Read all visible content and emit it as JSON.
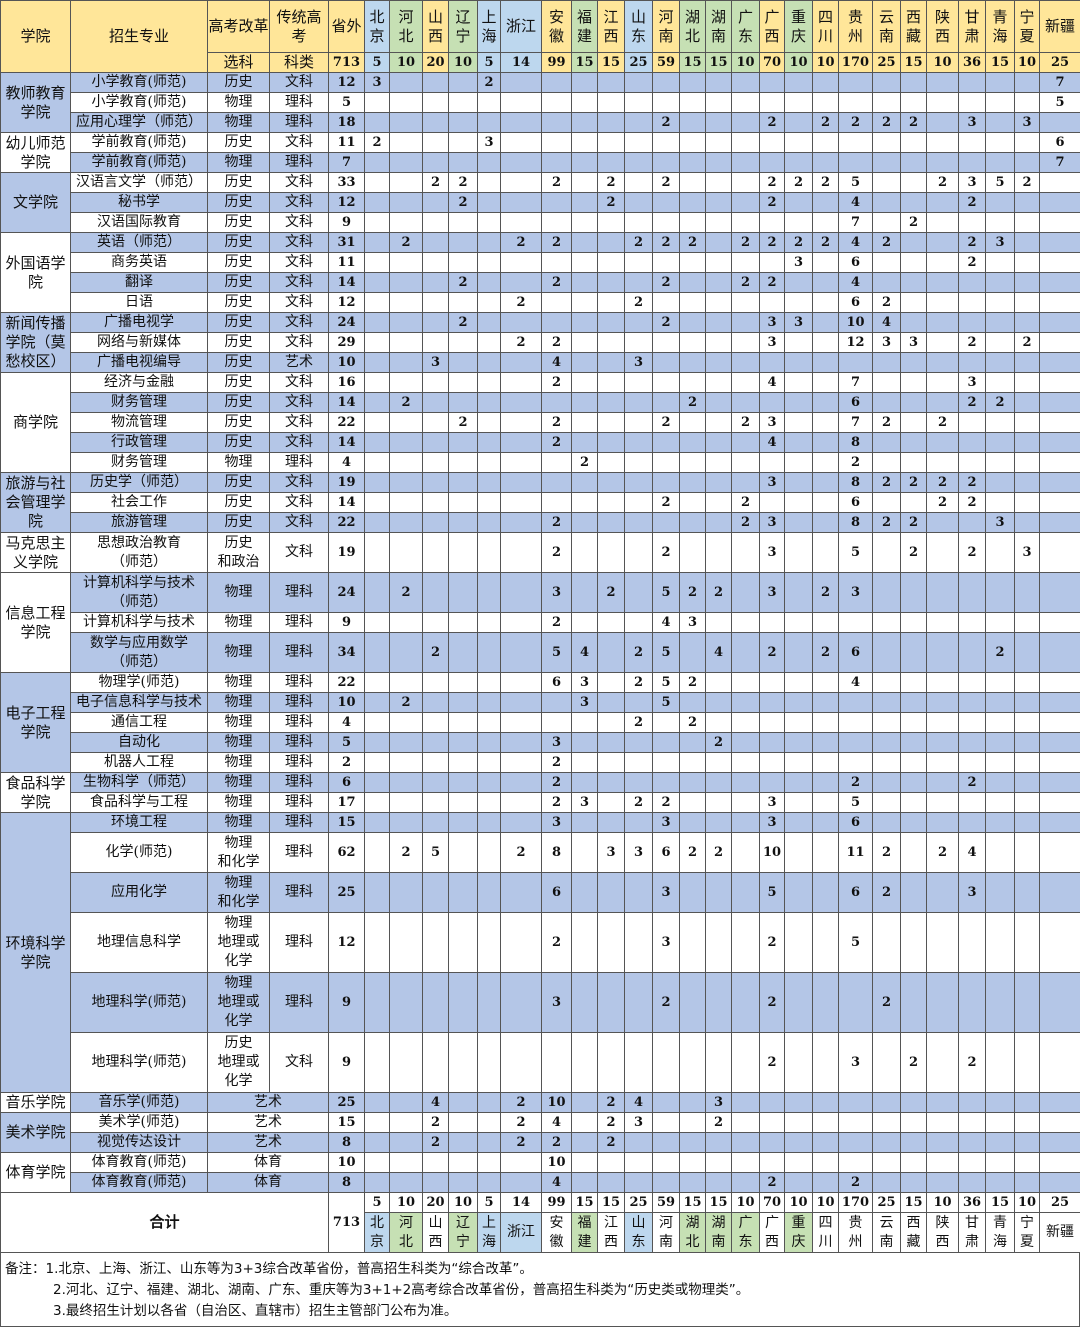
{
  "header": {
    "college": "学院",
    "major": "招生专业",
    "reform": "高考改革",
    "traditional": "传统高考",
    "out_of_province": "省外",
    "subject": "选科",
    "category": "科类",
    "total": 713
  },
  "colors": {
    "traditional": "#ffe699",
    "reform_3_3": "#bdd7ee",
    "reform_3_1_2": "#c6e0b4",
    "stripe": "#b4c6e7"
  },
  "provinces": [
    {
      "name": "北京",
      "quota": 5,
      "color": "#bdd7ee"
    },
    {
      "name": "河北",
      "quota": 10,
      "color": "#c6e0b4"
    },
    {
      "name": "山西",
      "quota": 20,
      "color": "#ffe699"
    },
    {
      "name": "辽宁",
      "quota": 10,
      "color": "#c6e0b4"
    },
    {
      "name": "上海",
      "quota": 5,
      "color": "#bdd7ee"
    },
    {
      "name": "浙江",
      "quota": 14,
      "color": "#bdd7ee"
    },
    {
      "name": "安徽",
      "quota": 99,
      "color": "#ffe699"
    },
    {
      "name": "福建",
      "quota": 15,
      "color": "#c6e0b4"
    },
    {
      "name": "江西",
      "quota": 15,
      "color": "#ffe699"
    },
    {
      "name": "山东",
      "quota": 25,
      "color": "#bdd7ee"
    },
    {
      "name": "河南",
      "quota": 59,
      "color": "#ffe699"
    },
    {
      "name": "湖北",
      "quota": 15,
      "color": "#c6e0b4"
    },
    {
      "name": "湖南",
      "quota": 15,
      "color": "#c6e0b4"
    },
    {
      "name": "广东",
      "quota": 10,
      "color": "#c6e0b4"
    },
    {
      "name": "广西",
      "quota": 70,
      "color": "#ffe699"
    },
    {
      "name": "重庆",
      "quota": 10,
      "color": "#c6e0b4"
    },
    {
      "name": "四川",
      "quota": 10,
      "color": "#ffe699"
    },
    {
      "name": "贵州",
      "quota": 170,
      "color": "#ffe699"
    },
    {
      "name": "云南",
      "quota": 25,
      "color": "#ffe699"
    },
    {
      "name": "西藏",
      "quota": 15,
      "color": "#ffe699"
    },
    {
      "name": "陕西",
      "quota": 10,
      "color": "#ffe699"
    },
    {
      "name": "甘肃",
      "quota": 36,
      "color": "#ffe699"
    },
    {
      "name": "青海",
      "quota": 15,
      "color": "#ffe699"
    },
    {
      "name": "宁夏",
      "quota": 10,
      "color": "#ffe699"
    },
    {
      "name": "新疆",
      "quota": 25,
      "color": "#ffe699"
    }
  ],
  "colleges": [
    {
      "name": "教师教育\n学院",
      "majors": [
        {
          "name": "小学教育(师范)",
          "subject": "历史",
          "category": "文科",
          "total": 12,
          "counts": {
            "北京": 3,
            "上海": 2,
            "新疆": 7
          }
        },
        {
          "name": "小学教育(师范)",
          "subject": "物理",
          "category": "理科",
          "total": 5,
          "counts": {
            "新疆": 5
          }
        },
        {
          "name": "应用心理学（师范）",
          "subject": "物理",
          "category": "理科",
          "total": 18,
          "counts": {
            "河南": 2,
            "广西": 2,
            "四川": 2,
            "贵州": 2,
            "云南": 2,
            "西藏": 2,
            "甘肃": 3,
            "宁夏": 3
          }
        }
      ]
    },
    {
      "name": "幼儿师范\n学院",
      "majors": [
        {
          "name": "学前教育(师范)",
          "subject": "历史",
          "category": "文科",
          "total": 11,
          "counts": {
            "北京": 2,
            "上海": 3,
            "新疆": 6
          }
        },
        {
          "name": "学前教育(师范)",
          "subject": "物理",
          "category": "理科",
          "total": 7,
          "counts": {
            "新疆": 7
          }
        }
      ]
    },
    {
      "name": "文学院",
      "majors": [
        {
          "name": "汉语言文学（师范）",
          "subject": "历史",
          "category": "文科",
          "total": 33,
          "counts": {
            "山西": 2,
            "辽宁": 2,
            "安徽": 2,
            "江西": 2,
            "河南": 2,
            "广西": 2,
            "重庆": 2,
            "四川": 2,
            "贵州": 5,
            "陕西": 2,
            "甘肃": 3,
            "青海": 5,
            "宁夏": 2
          }
        },
        {
          "name": "秘书学",
          "subject": "历史",
          "category": "文科",
          "total": 12,
          "counts": {
            "辽宁": 2,
            "江西": 2,
            "广西": 2,
            "贵州": 4,
            "甘肃": 2
          }
        },
        {
          "name": "汉语国际教育",
          "subject": "历史",
          "category": "文科",
          "total": 9,
          "counts": {
            "贵州": 7,
            "西藏": 2
          }
        }
      ]
    },
    {
      "name": "外国语学\n院",
      "majors": [
        {
          "name": "英语（师范）",
          "subject": "历史",
          "category": "文科",
          "total": 31,
          "counts": {
            "河北": 2,
            "浙江": 2,
            "安徽": 2,
            "山东": 2,
            "河南": 2,
            "湖北": 2,
            "广东": 2,
            "广西": 2,
            "重庆": 2,
            "四川": 2,
            "贵州": 4,
            "云南": 2,
            "甘肃": 2,
            "青海": 3
          }
        },
        {
          "name": "商务英语",
          "subject": "历史",
          "category": "文科",
          "total": 11,
          "counts": {
            "重庆": 3,
            "贵州": 6,
            "甘肃": 2
          }
        },
        {
          "name": "翻译",
          "subject": "历史",
          "category": "文科",
          "total": 14,
          "counts": {
            "辽宁": 2,
            "安徽": 2,
            "河南": 2,
            "广东": 2,
            "广西": 2,
            "贵州": 4
          }
        },
        {
          "name": "日语",
          "subject": "历史",
          "category": "文科",
          "total": 12,
          "counts": {
            "浙江": 2,
            "山东": 2,
            "贵州": 6,
            "云南": 2
          }
        }
      ]
    },
    {
      "name": "新闻传播\n学院（莫\n愁校区）",
      "majors": [
        {
          "name": "广播电视学",
          "subject": "历史",
          "category": "文科",
          "total": 24,
          "counts": {
            "辽宁": 2,
            "河南": 2,
            "广西": 3,
            "重庆": 3,
            "贵州": 10,
            "云南": 4
          }
        },
        {
          "name": "网络与新媒体",
          "subject": "历史",
          "category": "文科",
          "total": 29,
          "counts": {
            "浙江": 2,
            "安徽": 2,
            "广西": 3,
            "贵州": 12,
            "云南": 3,
            "西藏": 3,
            "甘肃": 2,
            "宁夏": 2
          }
        },
        {
          "name": "广播电视编导",
          "subject": "历史",
          "category": "艺术",
          "total": 10,
          "counts": {
            "山西": 3,
            "安徽": 4,
            "山东": 3
          }
        }
      ]
    },
    {
      "name": "商学院",
      "majors": [
        {
          "name": "经济与金融",
          "subject": "历史",
          "category": "文科",
          "total": 16,
          "counts": {
            "安徽": 2,
            "广西": 4,
            "贵州": 7,
            "甘肃": 3
          }
        },
        {
          "name": "财务管理",
          "subject": "历史",
          "category": "文科",
          "total": 14,
          "counts": {
            "河北": 2,
            "湖北": 2,
            "贵州": 6,
            "甘肃": 2,
            "青海": 2
          }
        },
        {
          "name": "物流管理",
          "subject": "历史",
          "category": "文科",
          "total": 22,
          "counts": {
            "辽宁": 2,
            "安徽": 2,
            "河南": 2,
            "广东": 2,
            "广西": 3,
            "贵州": 7,
            "云南": 2,
            "陕西": 2
          }
        },
        {
          "name": "行政管理",
          "subject": "历史",
          "category": "文科",
          "total": 14,
          "counts": {
            "安徽": 2,
            "广西": 4,
            "贵州": 8
          }
        },
        {
          "name": "财务管理",
          "subject": "物理",
          "category": "理科",
          "total": 4,
          "counts": {
            "福建": 2,
            "贵州": 2
          }
        }
      ]
    },
    {
      "name": "旅游与社\n会管理学\n院",
      "majors": [
        {
          "name": "历史学（师范）",
          "subject": "历史",
          "category": "文科",
          "total": 19,
          "counts": {
            "广西": 3,
            "贵州": 8,
            "云南": 2,
            "西藏": 2,
            "陕西": 2,
            "甘肃": 2
          }
        },
        {
          "name": "社会工作",
          "subject": "历史",
          "category": "文科",
          "total": 14,
          "counts": {
            "河南": 2,
            "广东": 2,
            "贵州": 6,
            "陕西": 2,
            "甘肃": 2
          }
        },
        {
          "name": "旅游管理",
          "subject": "历史",
          "category": "文科",
          "total": 22,
          "counts": {
            "安徽": 2,
            "广东": 2,
            "广西": 3,
            "贵州": 8,
            "云南": 2,
            "西藏": 2,
            "青海": 3
          }
        }
      ]
    },
    {
      "name": "马克思主\n义学院",
      "majors": [
        {
          "name": "思想政治教育\n（师范）",
          "subject": "历史\n和政治",
          "category": "文科",
          "total": 19,
          "counts": {
            "安徽": 2,
            "河南": 2,
            "广西": 3,
            "贵州": 5,
            "西藏": 2,
            "甘肃": 2,
            "宁夏": 3
          }
        }
      ]
    },
    {
      "name": "信息工程\n学院",
      "majors": [
        {
          "name": "计算机科学与技术\n（师范）",
          "subject": "物理",
          "category": "理科",
          "total": 24,
          "counts": {
            "河北": 2,
            "安徽": 3,
            "江西": 2,
            "河南": 5,
            "湖北": 2,
            "湖南": 2,
            "广西": 3,
            "四川": 2,
            "贵州": 3
          }
        },
        {
          "name": "计算机科学与技术",
          "subject": "物理",
          "category": "理科",
          "total": 9,
          "counts": {
            "安徽": 2,
            "河南": 4,
            "湖北": 3
          }
        },
        {
          "name": "数学与应用数学\n（师范）",
          "subject": "物理",
          "category": "理科",
          "total": 34,
          "counts": {
            "山西": 2,
            "安徽": 5,
            "福建": 4,
            "山东": 2,
            "河南": 5,
            "湖南": 4,
            "广西": 2,
            "四川": 2,
            "贵州": 6,
            "青海": 2
          }
        }
      ]
    },
    {
      "name": "电子工程\n学院",
      "majors": [
        {
          "name": "物理学(师范)",
          "subject": "物理",
          "category": "理科",
          "total": 22,
          "counts": {
            "安徽": 6,
            "福建": 3,
            "山东": 2,
            "河南": 5,
            "湖北": 2,
            "贵州": 4
          }
        },
        {
          "name": "电子信息科学与技术",
          "subject": "物理",
          "category": "理科",
          "total": 10,
          "counts": {
            "河北": 2,
            "福建": 3,
            "河南": 5
          }
        },
        {
          "name": "通信工程",
          "subject": "物理",
          "category": "理科",
          "total": 4,
          "counts": {
            "山东": 2,
            "湖北": 2
          }
        },
        {
          "name": "自动化",
          "subject": "物理",
          "category": "理科",
          "total": 5,
          "counts": {
            "安徽": 3,
            "湖南": 2
          }
        },
        {
          "name": "机器人工程",
          "subject": "物理",
          "category": "理科",
          "total": 2,
          "counts": {
            "安徽": 2
          }
        }
      ]
    },
    {
      "name": "食品科学\n学院",
      "majors": [
        {
          "name": "生物科学（师范）",
          "subject": "物理",
          "category": "理科",
          "total": 6,
          "counts": {
            "安徽": 2,
            "贵州": 2,
            "甘肃": 2
          }
        },
        {
          "name": "食品科学与工程",
          "subject": "物理",
          "category": "理科",
          "total": 17,
          "counts": {
            "安徽": 2,
            "福建": 3,
            "山东": 2,
            "河南": 2,
            "广西": 3,
            "贵州": 5
          }
        }
      ]
    },
    {
      "name": "环境科学\n学院",
      "majors": [
        {
          "name": "环境工程",
          "subject": "物理",
          "category": "理科",
          "total": 15,
          "counts": {
            "安徽": 3,
            "河南": 3,
            "广西": 3,
            "贵州": 6
          }
        },
        {
          "name": "化学(师范)",
          "subject": "物理\n和化学",
          "category": "理科",
          "total": 62,
          "counts": {
            "河北": 2,
            "山西": 5,
            "浙江": 2,
            "安徽": 8,
            "江西": 3,
            "山东": 3,
            "河南": 6,
            "湖北": 2,
            "湖南": 2,
            "广西": 10,
            "贵州": 11,
            "云南": 2,
            "陕西": 2,
            "甘肃": 4
          }
        },
        {
          "name": "应用化学",
          "subject": "物理\n和化学",
          "category": "理科",
          "total": 25,
          "counts": {
            "安徽": 6,
            "河南": 3,
            "广西": 5,
            "贵州": 6,
            "云南": 2,
            "甘肃": 3
          }
        },
        {
          "name": "地理信息科学",
          "subject": "物理\n地理或\n化学",
          "category": "理科",
          "total": 12,
          "counts": {
            "安徽": 2,
            "河南": 3,
            "广西": 2,
            "贵州": 5
          }
        },
        {
          "name": "地理科学(师范)",
          "subject": "物理\n地理或\n化学",
          "category": "理科",
          "total": 9,
          "counts": {
            "安徽": 3,
            "河南": 2,
            "广西": 2,
            "云南": 2
          }
        },
        {
          "name": "地理科学(师范)",
          "subject": "历史\n地理或\n化学",
          "category": "文科",
          "total": 9,
          "counts": {
            "广西": 2,
            "贵州": 3,
            "西藏": 2,
            "甘肃": 2
          }
        }
      ]
    },
    {
      "name": "音乐学院",
      "majors": [
        {
          "name": "音乐学(师范)",
          "merged": "艺术",
          "total": 25,
          "counts": {
            "山西": 4,
            "浙江": 2,
            "安徽": 10,
            "江西": 2,
            "山东": 4,
            "湖南": 3
          }
        }
      ]
    },
    {
      "name": "美术学院",
      "majors": [
        {
          "name": "美术学(师范)",
          "merged": "艺术",
          "total": 15,
          "counts": {
            "山西": 2,
            "浙江": 2,
            "安徽": 4,
            "江西": 2,
            "山东": 3,
            "湖南": 2
          }
        },
        {
          "name": "视觉传达设计",
          "merged": "艺术",
          "total": 8,
          "counts": {
            "山西": 2,
            "浙江": 2,
            "安徽": 2,
            "江西": 2
          }
        }
      ]
    },
    {
      "name": "体育学院",
      "majors": [
        {
          "name": "体育教育(师范)",
          "merged": "体育",
          "total": 10,
          "counts": {
            "安徽": 10
          }
        },
        {
          "name": "体育教育(师范)",
          "merged": "体育",
          "total": 8,
          "counts": {
            "安徽": 4,
            "广西": 2,
            "贵州": 2
          }
        }
      ]
    }
  ],
  "footer": {
    "label": "合计",
    "total": 713
  },
  "notes": {
    "prefix": "备注：",
    "lines": [
      "1.北京、上海、浙江、山东等为3+3综合改革省份，普高招生科类为“综合改革”。",
      "2.河北、辽宁、福建、湖北、湖南、广东、重庆等为3+1+2高考综合改革省份，普高招生科类为“历史类或物理类”。",
      "3.最终招生计划以各省（自治区、直辖市）招生主管部门公布为准。"
    ]
  }
}
